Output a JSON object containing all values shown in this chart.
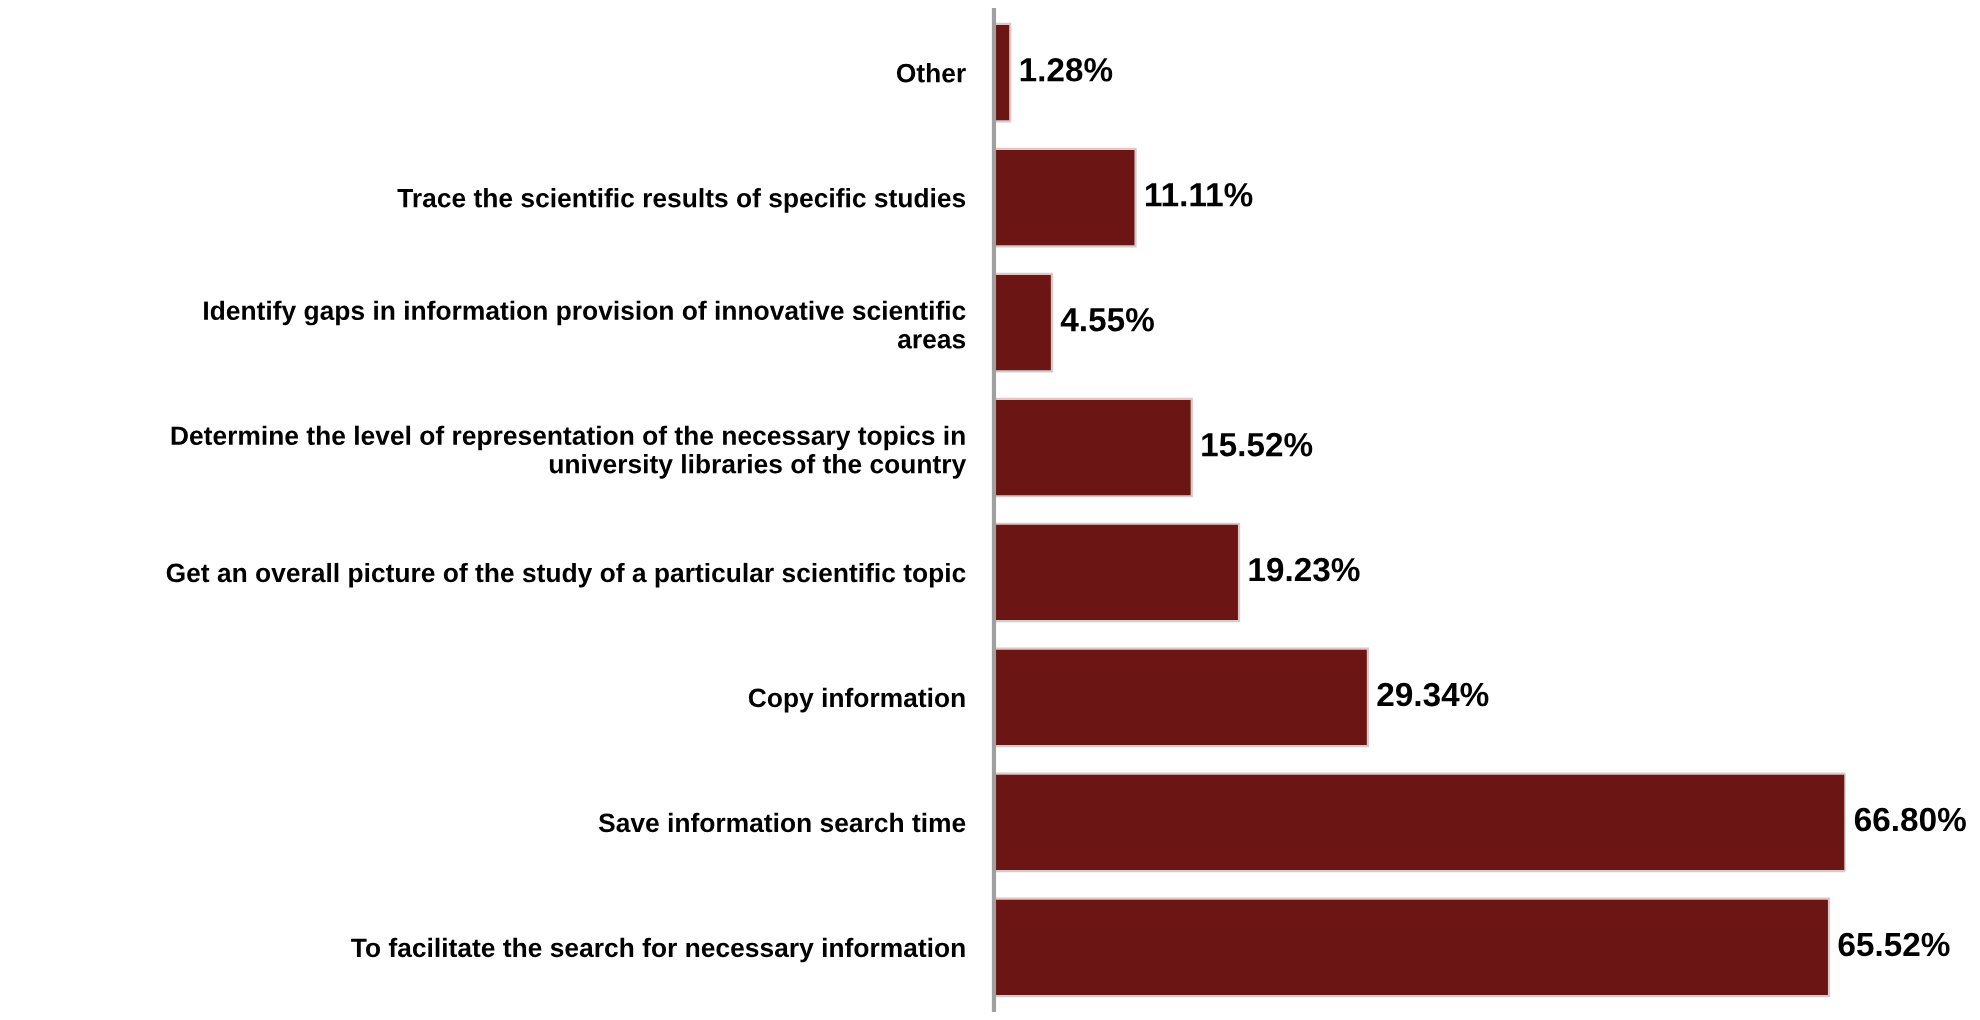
{
  "chart_data": {
    "type": "bar",
    "orientation": "horizontal",
    "categories": [
      "Other",
      "Trace the scientific results of specific studies",
      "Identify gaps in information provision of innovative scientific areas",
      "Determine the level of representation of the necessary topics in university libraries of the country",
      "Get an overall picture of the study of a particular scientific topic",
      "Copy information",
      "Save information search time",
      "To facilitate the search for necessary information"
    ],
    "values": [
      1.28,
      11.11,
      4.55,
      15.52,
      19.23,
      29.34,
      66.8,
      65.52
    ],
    "value_labels": [
      "1.28%",
      "11.11%",
      "4.55%",
      "15.52%",
      "19.23%",
      "29.34%",
      "66.80%",
      "65.52%"
    ],
    "color": "#6b1515",
    "grid": false,
    "legend": false
  }
}
